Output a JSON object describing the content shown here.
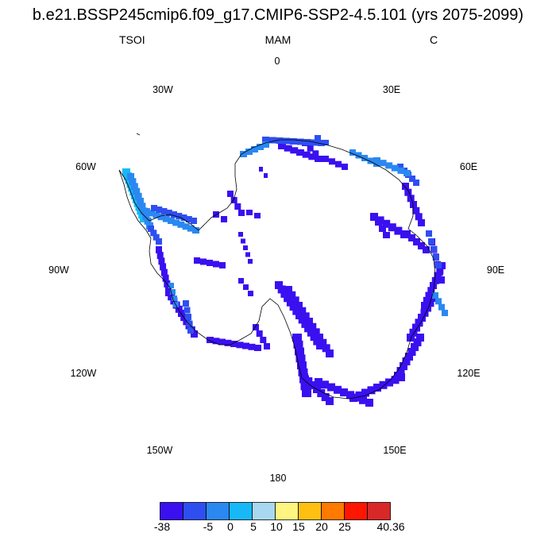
{
  "title": "b.e21.BSSP245cmip6.f09_g17.CMIP6-SSP2-4.5.101 (yrs 2075-2099)",
  "variable": "TSOI",
  "season": "MAM",
  "units": "C",
  "longitude_labels": [
    "0",
    "30E",
    "60E",
    "90E",
    "120E",
    "150E",
    "180",
    "150W",
    "120W",
    "90W",
    "60W",
    "30W"
  ],
  "colorbar": {
    "colors": [
      "#3a10f0",
      "#2e4ff0",
      "#2a88f0",
      "#18b8f8",
      "#a8d8f0",
      "#fff580",
      "#ffc012",
      "#ff7a00",
      "#ff1600",
      "#d82828"
    ],
    "tick_labels": [
      "-38",
      "-5",
      "0",
      "5",
      "10",
      "15",
      "20",
      "25",
      "40.36"
    ]
  }
}
